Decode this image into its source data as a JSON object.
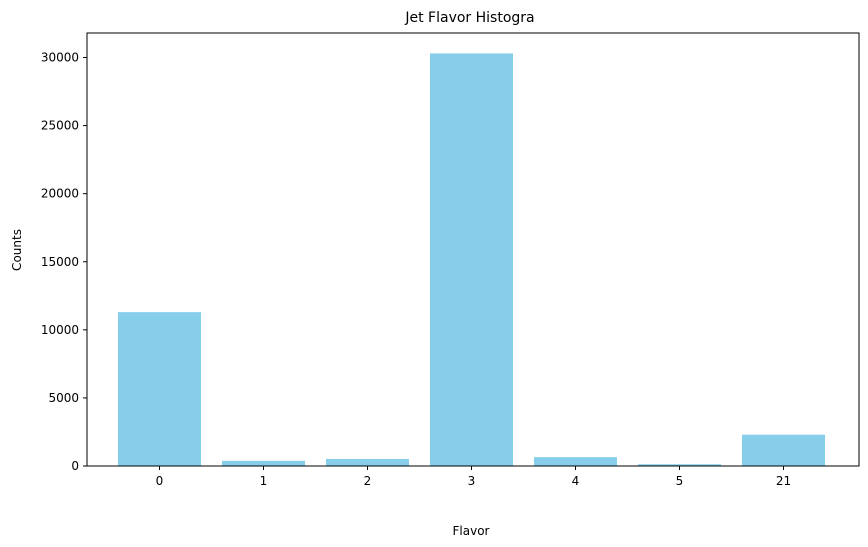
{
  "chart_data": {
    "type": "bar",
    "title": "Jet Flavor Histogra",
    "xlabel": "Flavor",
    "ylabel": "Counts",
    "categories": [
      "0",
      "1",
      "2",
      "3",
      "4",
      "5",
      "21"
    ],
    "values": [
      11300,
      380,
      520,
      30300,
      650,
      130,
      2300
    ],
    "ylim": [
      0,
      31800
    ],
    "yticks": [
      0,
      5000,
      10000,
      15000,
      20000,
      25000,
      30000
    ],
    "bar_color": "#87ceeb",
    "grid": false
  }
}
